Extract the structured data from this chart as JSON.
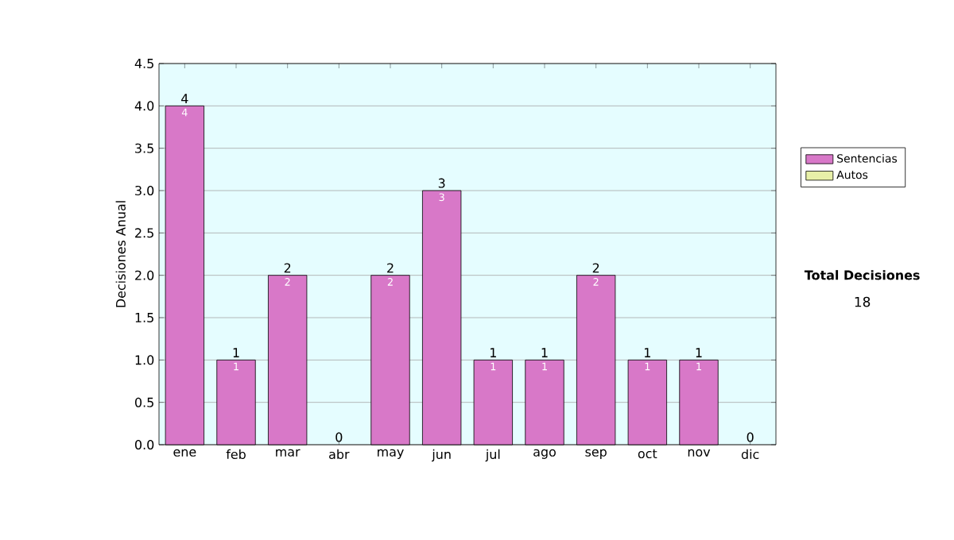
{
  "chart_data": {
    "type": "bar",
    "stacked": true,
    "ylabel": "Decisiones Anual",
    "categories": [
      "ene",
      "feb",
      "mar",
      "abr",
      "may",
      "jun",
      "jul",
      "ago",
      "sep",
      "oct",
      "nov",
      "dic"
    ],
    "series": [
      {
        "name": "Sentencias",
        "color": "#d878c8",
        "values": [
          4,
          1,
          2,
          0,
          2,
          3,
          1,
          1,
          2,
          1,
          1,
          0
        ],
        "value_labels": [
          "4",
          "1",
          "2",
          null,
          "2",
          "3",
          "1",
          "1",
          "2",
          "1",
          "1",
          null
        ]
      },
      {
        "name": "Autos",
        "color": "#e8f0a8",
        "values": [
          0,
          0,
          0,
          0,
          0,
          0,
          0,
          0,
          0,
          0,
          0,
          0
        ]
      }
    ],
    "totals": [
      "4",
      "1",
      "2",
      "0",
      "2",
      "3",
      "1",
      "1",
      "2",
      "1",
      "1",
      "0"
    ],
    "ylim": [
      0,
      4.5
    ],
    "yticks": [
      {
        "value": 0,
        "label": "0.0"
      },
      {
        "value": 0.5,
        "label": "0.5"
      },
      {
        "value": 1,
        "label": "1.0"
      },
      {
        "value": 1.5,
        "label": "1.5"
      },
      {
        "value": 2,
        "label": "2.0"
      },
      {
        "value": 2.5,
        "label": "2.5"
      },
      {
        "value": 3,
        "label": "3.0"
      },
      {
        "value": 3.5,
        "label": "3.5"
      },
      {
        "value": 4,
        "label": "4.0"
      },
      {
        "value": 4.5,
        "label": "4.5"
      }
    ],
    "grid": "y",
    "legend": "right",
    "annotations": [
      "Total Decisiones",
      "18"
    ]
  }
}
